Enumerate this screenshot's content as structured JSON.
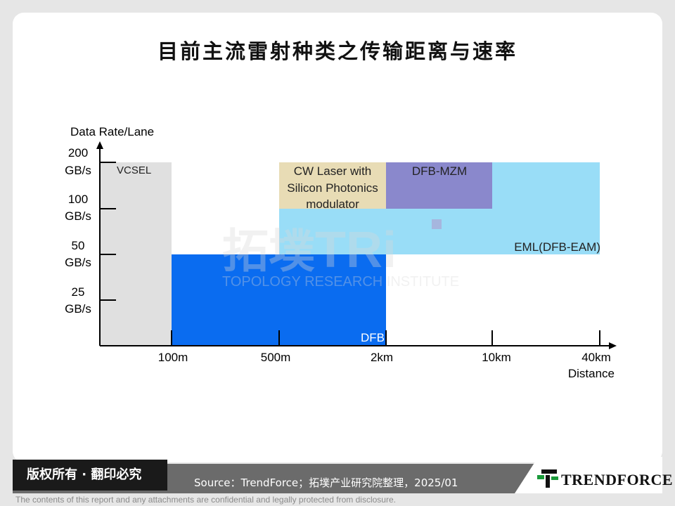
{
  "title": "目前主流雷射种类之传输距离与速率",
  "chart_data": {
    "type": "range-block",
    "xlabel": "Distance",
    "ylabel": "Data Rate/Lane",
    "x_ticks": [
      "100m",
      "500m",
      "2km",
      "10km",
      "40km"
    ],
    "y_ticks": [
      {
        "line1": "25",
        "line2": "GB/s"
      },
      {
        "line1": "50",
        "line2": "GB/s"
      },
      {
        "line1": "100",
        "line2": "GB/s"
      },
      {
        "line1": "200",
        "line2": "GB/s"
      }
    ],
    "series": [
      {
        "name": "VCSEL",
        "x_range": [
          "0",
          "100m"
        ],
        "y_range": [
          "0",
          "200 GB/s"
        ],
        "color": "#e0e0e0"
      },
      {
        "name": "EML(DFB-EAM)",
        "x_range": [
          "500m",
          "40km"
        ],
        "y_range": [
          "50 GB/s",
          "200 GB/s"
        ],
        "color": "#99ddf7"
      },
      {
        "name": "CW Laser with Silicon Photonics modulator",
        "x_range": [
          "500m",
          "2km"
        ],
        "y_range": [
          "100 GB/s",
          "200 GB/s"
        ],
        "color": "#e8dcb5"
      },
      {
        "name": "DFB-MZM",
        "x_range": [
          "2km",
          "10km"
        ],
        "y_range": [
          "100 GB/s",
          "200 GB/s"
        ],
        "color": "#8a88cc"
      },
      {
        "name": "DFB",
        "x_range": [
          "100m",
          "2km"
        ],
        "y_range": [
          "0",
          "50 GB/s"
        ],
        "color": "#0a6cf0"
      }
    ],
    "block_labels": {
      "vcsel": "VCSEL",
      "cw_line1": "CW Laser with",
      "cw_line2": "Silicon Photonics",
      "cw_line3": "modulator",
      "mzm": "DFB-MZM",
      "eml": "EML(DFB-EAM)",
      "dfb": "DFB"
    }
  },
  "watermark": {
    "cn": "拓墣",
    "en": "TRi",
    "sub": "TOPOLOGY RESEARCH INSTITUTE"
  },
  "footer": {
    "rights": "版权所有 · 翻印必究",
    "source": "Source：TrendForce；拓墣产业研究院整理，2025/01",
    "logo": "TRENDFORCE",
    "disclaimer": "The contents of this report and any attachments are confidential and legally protected from disclosure."
  },
  "colors": {
    "vcsel": "#e0e0e0",
    "dfb": "#0a6cf0",
    "eml": "#99ddf7",
    "cw": "#e8dcb5",
    "mzm": "#8a88cc",
    "logo_green": "#1a9a3a",
    "footer_dark": "#1a1a1a",
    "footer_grey": "#6b6b6b"
  }
}
